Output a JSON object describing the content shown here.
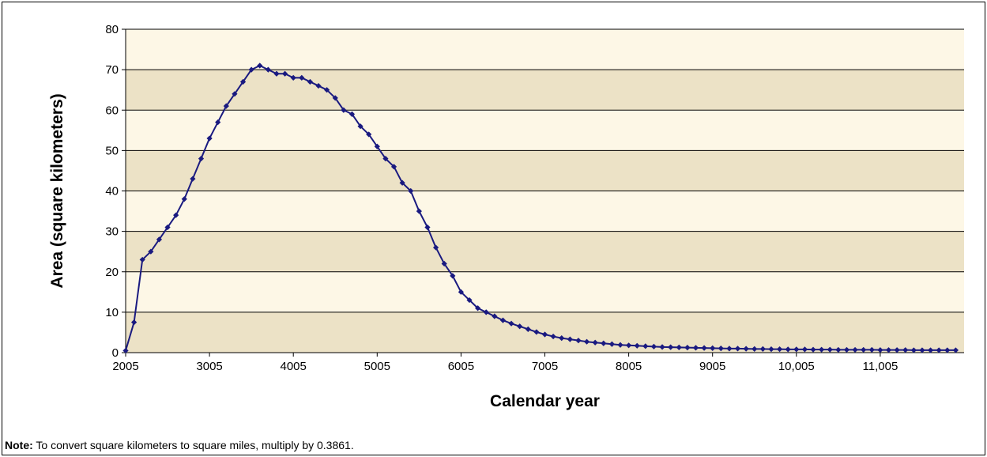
{
  "chart_data": {
    "type": "line",
    "title": "",
    "xlabel": "Calendar year",
    "ylabel": "Area (square kilometers)",
    "xlim": [
      2005,
      12005
    ],
    "ylim": [
      0,
      80
    ],
    "x_ticks": [
      2005,
      3005,
      4005,
      5005,
      6005,
      7005,
      8005,
      9005,
      10005,
      11005
    ],
    "x_tick_labels": [
      "2005",
      "3005",
      "4005",
      "5005",
      "6005",
      "7005",
      "8005",
      "9005",
      "10,005",
      "11,005"
    ],
    "y_ticks": [
      0,
      10,
      20,
      30,
      40,
      50,
      60,
      70,
      80
    ],
    "y_tick_labels": [
      "0",
      "10",
      "20",
      "30",
      "40",
      "50",
      "60",
      "70",
      "80"
    ],
    "grid": "horizontal",
    "legend": "none",
    "colors": {
      "line": "#1a1a80",
      "marker": "#1a1a80",
      "band_dark": "#ece2c6",
      "band_light": "#fdf7e6",
      "grid": "#000000"
    },
    "series": [
      {
        "x": [
          2005,
          2105,
          2205,
          2305,
          2405,
          2505,
          2605,
          2705,
          2805,
          2905,
          3005,
          3105,
          3205,
          3305,
          3405,
          3505,
          3605,
          3705,
          3805,
          3905,
          4005,
          4105,
          4205,
          4305,
          4405,
          4505,
          4605,
          4705,
          4805,
          4905,
          5005,
          5105,
          5205,
          5305,
          5405,
          5505,
          5605,
          5705,
          5805,
          5905,
          6005,
          6105,
          6205,
          6305,
          6405,
          6505,
          6605,
          6705,
          6805,
          6905,
          7005,
          7105,
          7205,
          7305,
          7405,
          7505,
          7605,
          7705,
          7805,
          7905,
          8005,
          8105,
          8205,
          8305,
          8405,
          8505,
          8605,
          8705,
          8805,
          8905,
          9005,
          9105,
          9205,
          9305,
          9405,
          9505,
          9605,
          9705,
          9805,
          9905,
          10005,
          10105,
          10205,
          10305,
          10405,
          10505,
          10605,
          10705,
          10805,
          10905,
          11005,
          11105,
          11205,
          11305,
          11405,
          11505,
          11605,
          11705,
          11805,
          11905
        ],
        "y": [
          0.5,
          7.5,
          23,
          25,
          28,
          31,
          34,
          38,
          43,
          48,
          53,
          57,
          61,
          64,
          67,
          70,
          71,
          70,
          69,
          69,
          68,
          68,
          67,
          66,
          65,
          63,
          60,
          59,
          56,
          54,
          51,
          48,
          46,
          42,
          40,
          35,
          31,
          26,
          22,
          19,
          15,
          13,
          11,
          10,
          9,
          8,
          7.2,
          6.5,
          5.8,
          5.1,
          4.5,
          4.0,
          3.6,
          3.3,
          3.0,
          2.7,
          2.5,
          2.3,
          2.1,
          1.9,
          1.8,
          1.7,
          1.6,
          1.5,
          1.4,
          1.35,
          1.3,
          1.25,
          1.2,
          1.15,
          1.1,
          1.05,
          1.0,
          1.0,
          0.95,
          0.9,
          0.9,
          0.85,
          0.85,
          0.8,
          0.8,
          0.8,
          0.75,
          0.75,
          0.75,
          0.7,
          0.7,
          0.7,
          0.7,
          0.7,
          0.65,
          0.65,
          0.65,
          0.65,
          0.6,
          0.6,
          0.6,
          0.6,
          0.6,
          0.6
        ]
      }
    ]
  },
  "note": {
    "label": "Note:",
    "text": " To convert square kilometers to square miles, multiply by 0.3861."
  }
}
